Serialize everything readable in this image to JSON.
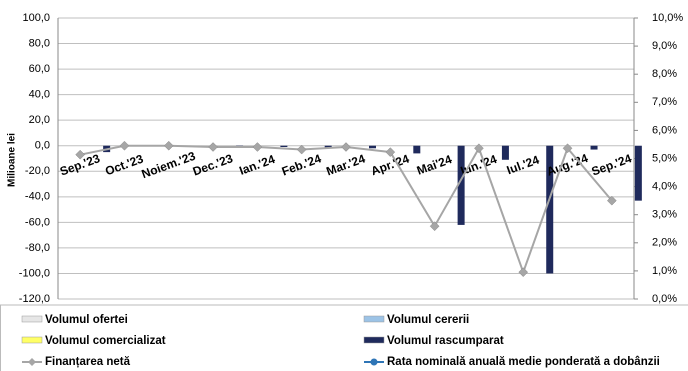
{
  "chart_data": {
    "type": "bar",
    "y_label": "Milioane lei",
    "categories": [
      "Sep.'23",
      "Oct.'23",
      "Noiem.'23",
      "Dec.'23",
      "Ian.'24",
      "Feb.'24",
      "Mar.'24",
      "Apr.'24",
      "Mai'24",
      "Iun.'24",
      "Iul.'24",
      "Aug.'24",
      "Sep.'24"
    ],
    "series": [
      {
        "name": "Volumul ofertei",
        "color": "#e6e6e6",
        "kind": "bar",
        "values": [
          0,
          0,
          0,
          0,
          0,
          0,
          0,
          0,
          0,
          0,
          0,
          0,
          0
        ]
      },
      {
        "name": "Volumul cererii",
        "color": "#9cc3e6",
        "kind": "bar",
        "values": [
          0,
          0,
          0,
          0,
          0,
          0,
          0,
          0,
          0,
          0,
          0,
          0,
          0
        ]
      },
      {
        "name": "Volumul comercializat",
        "color": "#ffff66",
        "kind": "bar",
        "values": [
          0,
          0,
          0,
          0,
          0,
          0,
          0,
          0,
          0,
          0,
          0,
          0,
          0
        ]
      },
      {
        "name": "Volumul rascumparat",
        "color": "#1f2a5c",
        "kind": "bar",
        "values": [
          -5,
          0,
          0,
          -1,
          -1,
          -2,
          -2,
          -6,
          -62,
          -11,
          -100,
          -3,
          -43
        ]
      },
      {
        "name": "Finanțarea netă",
        "color": "#a6a6a6",
        "kind": "line",
        "values": [
          -7,
          0,
          0,
          -1,
          -1,
          -3,
          -1,
          -5,
          -63,
          -2,
          -99,
          -2,
          -43
        ]
      },
      {
        "name": "Rata nominală anuală medie ponderată a dobânzii",
        "color": "#2e75b6",
        "kind": "line",
        "axis": "y2",
        "values": [
          null,
          null,
          null,
          null,
          null,
          null,
          null,
          null,
          null,
          null,
          null,
          null,
          null
        ]
      }
    ],
    "ylim": [
      -120,
      100
    ],
    "yticks": [
      {
        "value": -120,
        "label": "-120,0"
      },
      {
        "value": -100,
        "label": "-100,0"
      },
      {
        "value": -80,
        "label": "-80,0"
      },
      {
        "value": -60,
        "label": "-60,0"
      },
      {
        "value": -40,
        "label": "-40,0"
      },
      {
        "value": -20,
        "label": "-20,0"
      },
      {
        "value": 0,
        "label": "0,0"
      },
      {
        "value": 20,
        "label": "20,0"
      },
      {
        "value": 40,
        "label": "40,0"
      },
      {
        "value": 60,
        "label": "60,0"
      },
      {
        "value": 80,
        "label": "80,0"
      },
      {
        "value": 100,
        "label": "100,0"
      }
    ],
    "y2lim": [
      0,
      10
    ],
    "y2ticks": [
      {
        "value": 0,
        "label": "0,0%"
      },
      {
        "value": 1,
        "label": "1,0%"
      },
      {
        "value": 2,
        "label": "2,0%"
      },
      {
        "value": 3,
        "label": "3,0%"
      },
      {
        "value": 4,
        "label": "4,0%"
      },
      {
        "value": 5,
        "label": "5,0%"
      },
      {
        "value": 6,
        "label": "6,0%"
      },
      {
        "value": 7,
        "label": "7,0%"
      },
      {
        "value": 8,
        "label": "8,0%"
      },
      {
        "value": 9,
        "label": "9,0%"
      },
      {
        "value": 10,
        "label": "10,0%"
      }
    ],
    "grid": true
  }
}
